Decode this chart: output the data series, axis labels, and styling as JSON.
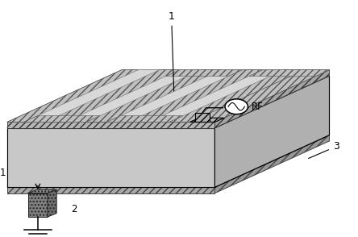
{
  "background_color": "#ffffff",
  "label_1": "1",
  "label_2": "2",
  "label_3": "3",
  "label_rf": "RF",
  "figsize": [
    4.44,
    2.94
  ],
  "dpi": 100,
  "ox": 0.32,
  "oy": 0.22,
  "fl": 0.02,
  "fr": 0.6,
  "fb": 0.28,
  "ft": 0.46,
  "plate_top_color": "#d0d0d0",
  "plate_front_color": "#b8b8b8",
  "plate_right_color": "#a0a0a0",
  "electrode_hatch_color": "#c0c0c0",
  "electrode_gap_color": "#d8d8d8",
  "sub_hatch_color": "#b0b0b0",
  "sub_front_color": "#989898",
  "pillar_color": "#888888"
}
